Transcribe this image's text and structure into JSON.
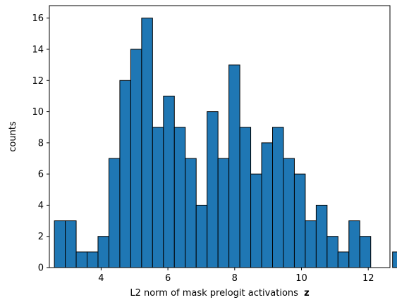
{
  "chart_data": {
    "type": "bar",
    "subtype": "histogram",
    "title": "",
    "xlabel": "L2 norm of mask prelogit activations",
    "xlabel_bold_suffix": "z",
    "ylabel": "counts",
    "xlim": [
      2.45,
      12.65
    ],
    "ylim": [
      0,
      16.8
    ],
    "xticks": [
      4,
      6,
      8,
      10,
      12
    ],
    "yticks": [
      0,
      2,
      4,
      6,
      8,
      10,
      12,
      14,
      16
    ],
    "bin_start": 2.6,
    "bin_width": 0.3267,
    "counts": [
      3,
      3,
      1,
      1,
      2,
      7,
      12,
      14,
      16,
      9,
      11,
      9,
      7,
      4,
      10,
      7,
      13,
      9,
      6,
      8,
      9,
      7,
      6,
      3,
      4,
      2,
      1,
      3,
      2,
      0,
      0,
      1
    ],
    "grid": false,
    "legend": "none",
    "colors": {
      "bar_fill": "#1f77b4",
      "bar_edge": "#000000"
    }
  }
}
